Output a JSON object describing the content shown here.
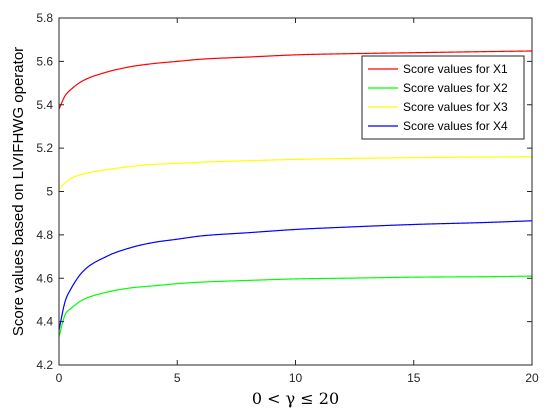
{
  "chart_data": {
    "type": "line",
    "title": "",
    "xlabel": "0 < γ ≤ 20",
    "ylabel": "Score values based on LIVIFHWG operator",
    "xlim": [
      0,
      20
    ],
    "ylim": [
      4.2,
      5.8
    ],
    "xticks": [
      0,
      5,
      10,
      15,
      20
    ],
    "yticks": [
      4.2,
      4.4,
      4.6,
      4.8,
      5.0,
      5.2,
      5.4,
      5.6,
      5.8
    ],
    "xtick_labels": [
      "0",
      "5",
      "10",
      "15",
      "20"
    ],
    "ytick_labels": [
      "4.2",
      "4.4",
      "4.6",
      "4.8",
      "5",
      "5.2",
      "5.4",
      "5.6",
      "5.8"
    ],
    "grid": false,
    "legend_position": "top-right",
    "series": [
      {
        "name": "Score values for X1",
        "color": "#ff0000",
        "x": [
          0,
          0.25,
          0.5,
          1,
          2,
          3,
          4,
          5,
          6,
          8,
          10,
          12,
          15,
          18,
          20
        ],
        "y": [
          5.38,
          5.44,
          5.47,
          5.51,
          5.55,
          5.575,
          5.59,
          5.6,
          5.61,
          5.62,
          5.63,
          5.635,
          5.64,
          5.645,
          5.648
        ]
      },
      {
        "name": "Score values for X2",
        "color": "#00ff00",
        "x": [
          0,
          0.25,
          0.5,
          1,
          2,
          3,
          4,
          5,
          6,
          8,
          10,
          12,
          15,
          18,
          20
        ],
        "y": [
          4.33,
          4.43,
          4.46,
          4.5,
          4.535,
          4.555,
          4.565,
          4.575,
          4.582,
          4.59,
          4.597,
          4.6,
          4.605,
          4.607,
          4.61
        ]
      },
      {
        "name": "Score values for X3",
        "color": "#ffff00",
        "x": [
          0,
          0.25,
          0.5,
          1,
          2,
          3,
          4,
          5,
          6,
          8,
          10,
          12,
          15,
          18,
          20
        ],
        "y": [
          5.01,
          5.04,
          5.06,
          5.08,
          5.1,
          5.115,
          5.125,
          5.13,
          5.135,
          5.142,
          5.148,
          5.152,
          5.156,
          5.159,
          5.16
        ]
      },
      {
        "name": "Score values for X4",
        "color": "#0000ff",
        "x": [
          0,
          0.25,
          0.5,
          1,
          2,
          3,
          4,
          5,
          6,
          8,
          10,
          12,
          15,
          18,
          20
        ],
        "y": [
          4.36,
          4.49,
          4.55,
          4.63,
          4.7,
          4.74,
          4.765,
          4.78,
          4.795,
          4.81,
          4.825,
          4.835,
          4.848,
          4.857,
          4.865
        ]
      }
    ]
  }
}
